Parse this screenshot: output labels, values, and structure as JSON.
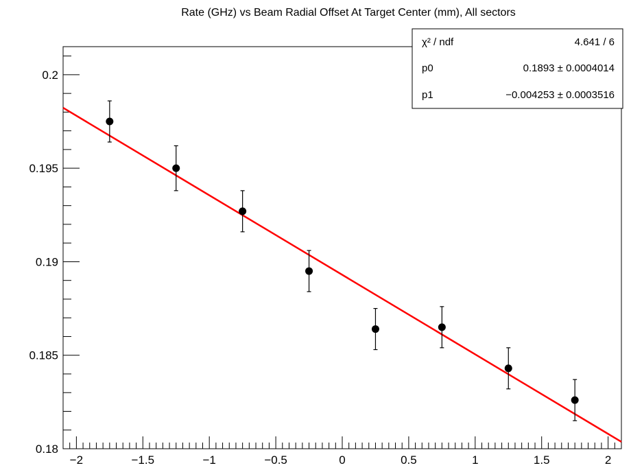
{
  "chart_data": {
    "type": "scatter",
    "title": "Rate (GHz) vs Beam Radial Offset At Target Center (mm), All sectors",
    "xlabel": "",
    "ylabel": "",
    "xlim": [
      -2.1,
      2.1
    ],
    "ylim": [
      0.18,
      0.2015
    ],
    "x_ticks": [
      -2,
      -1.5,
      -1,
      -0.5,
      0,
      0.5,
      1,
      1.5,
      2
    ],
    "x_tick_labels": [
      "−2",
      "−1.5",
      "−1",
      "−0.5",
      "0",
      "0.5",
      "1",
      "1.5",
      "2"
    ],
    "y_ticks": [
      0.18,
      0.185,
      0.19,
      0.195,
      0.2
    ],
    "y_tick_labels": [
      "0.18",
      "0.185",
      "0.19",
      "0.195",
      "0.2"
    ],
    "series": [
      {
        "x": [
          -1.75,
          -1.25,
          -0.75,
          -0.25,
          0.25,
          0.75,
          1.25,
          1.75
        ],
        "y": [
          0.1975,
          0.195,
          0.1927,
          0.1895,
          0.1864,
          0.1865,
          0.1843,
          0.1826
        ],
        "yerr": [
          0.0011,
          0.0012,
          0.0011,
          0.0011,
          0.0011,
          0.0011,
          0.0011,
          0.0011
        ],
        "color": "#000000"
      }
    ],
    "fit": {
      "function": "pol1",
      "p0": 0.1893,
      "p1": -0.004253,
      "color": "#ff0000"
    },
    "grid": false,
    "legend": "top-right"
  },
  "statbox": {
    "rows": [
      {
        "label": "χ² / ndf",
        "value": "4.641 / 6"
      },
      {
        "label": "p0",
        "value": "0.1893 ± 0.0004014"
      },
      {
        "label": "p1",
        "value": "−0.004253 ± 0.0003516"
      }
    ]
  }
}
